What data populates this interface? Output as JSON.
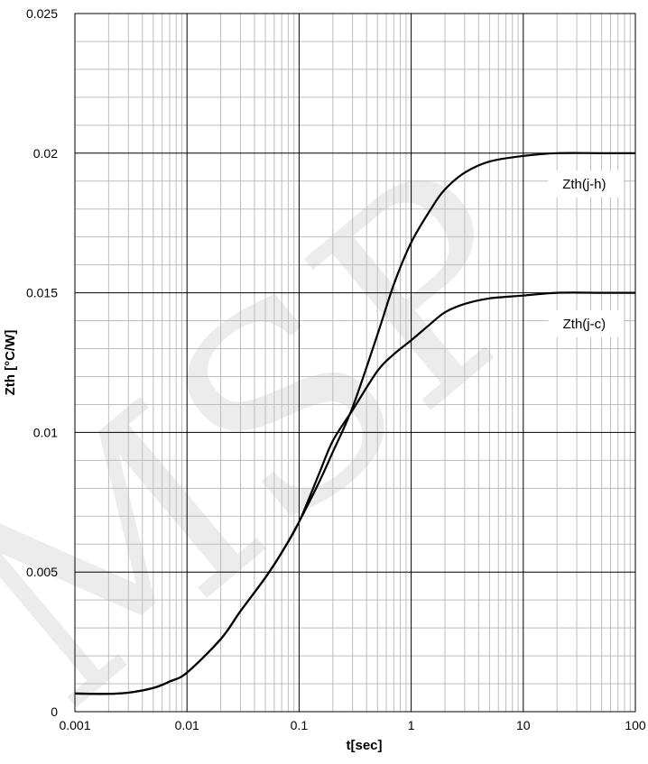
{
  "chart_data": {
    "type": "line",
    "x_scale": "log",
    "xlabel": "t[sec]",
    "ylabel": "Zth  [°C/W]",
    "xlim": [
      0.001,
      100
    ],
    "ylim": [
      0,
      0.025
    ],
    "grid": true,
    "x_tick_labels": [
      "0.001",
      "0.01",
      "0.1",
      "1",
      "10",
      "100"
    ],
    "y_tick_labels": [
      "0",
      "0.005",
      "0.01",
      "0.015",
      "0.02",
      "0.025"
    ],
    "watermark": "MSP",
    "series": [
      {
        "name": "Zth(j-h)",
        "color": "#000000",
        "points": [
          [
            0.001,
            0.00065
          ],
          [
            0.002,
            0.00064
          ],
          [
            0.003,
            0.00068
          ],
          [
            0.005,
            0.00085
          ],
          [
            0.007,
            0.00108
          ],
          [
            0.01,
            0.0014
          ],
          [
            0.02,
            0.0026
          ],
          [
            0.03,
            0.0036
          ],
          [
            0.05,
            0.0048
          ],
          [
            0.07,
            0.0057
          ],
          [
            0.1,
            0.0068
          ],
          [
            0.15,
            0.0082
          ],
          [
            0.2,
            0.0093
          ],
          [
            0.3,
            0.0109
          ],
          [
            0.5,
            0.0135
          ],
          [
            0.7,
            0.0153
          ],
          [
            1,
            0.0168
          ],
          [
            1.5,
            0.018
          ],
          [
            2,
            0.0187
          ],
          [
            3,
            0.0193
          ],
          [
            5,
            0.0197
          ],
          [
            10,
            0.0199
          ],
          [
            20,
            0.02
          ],
          [
            50,
            0.02
          ],
          [
            100,
            0.02
          ]
        ]
      },
      {
        "name": "Zth(j-c)",
        "color": "#000000",
        "points": [
          [
            0.001,
            0.00065
          ],
          [
            0.002,
            0.00064
          ],
          [
            0.003,
            0.00068
          ],
          [
            0.005,
            0.00085
          ],
          [
            0.007,
            0.00108
          ],
          [
            0.01,
            0.0014
          ],
          [
            0.02,
            0.0026
          ],
          [
            0.03,
            0.0036
          ],
          [
            0.05,
            0.0048
          ],
          [
            0.07,
            0.0057
          ],
          [
            0.1,
            0.0068
          ],
          [
            0.15,
            0.0085
          ],
          [
            0.2,
            0.0097
          ],
          [
            0.3,
            0.0108
          ],
          [
            0.5,
            0.0122
          ],
          [
            0.7,
            0.0128
          ],
          [
            1,
            0.0133
          ],
          [
            1.5,
            0.0139
          ],
          [
            2,
            0.0143
          ],
          [
            3,
            0.0146
          ],
          [
            5,
            0.0148
          ],
          [
            10,
            0.0149
          ],
          [
            20,
            0.015
          ],
          [
            50,
            0.015
          ],
          [
            100,
            0.015
          ]
        ]
      }
    ],
    "annotations": [
      {
        "text": "Zth(j-h)",
        "x": 35,
        "y": 0.0188
      },
      {
        "text": "Zth(j-c)",
        "x": 35,
        "y": 0.0138
      }
    ]
  }
}
